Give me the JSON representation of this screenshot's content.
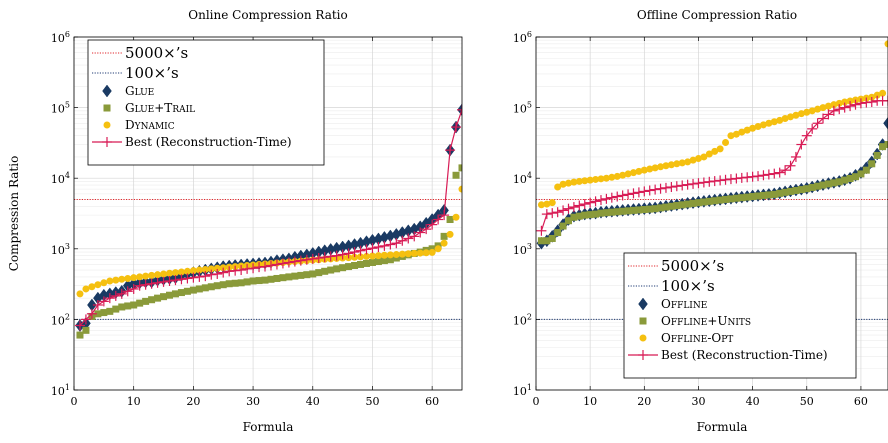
{
  "chart_data": [
    {
      "type": "scatter",
      "title": "Online Compression Ratio",
      "xlabel": "Formula",
      "ylabel": "Compression Ratio",
      "xlim": [
        0,
        65
      ],
      "ylim": [
        10,
        1000000
      ],
      "y_scale": "log",
      "x_ticks": [
        0,
        10,
        20,
        30,
        40,
        50,
        60
      ],
      "y_ticks": [
        {
          "base": "10",
          "exp": "1"
        },
        {
          "base": "10",
          "exp": "2"
        },
        {
          "base": "10",
          "exp": "3"
        },
        {
          "base": "10",
          "exp": "4"
        },
        {
          "base": "10",
          "exp": "5"
        },
        {
          "base": "10",
          "exp": "6"
        }
      ],
      "grid": true,
      "legend_position": "top-left",
      "hlines": [
        {
          "label": "5000×’s",
          "value": 5000,
          "color": "#e0262b",
          "style": "dotted"
        },
        {
          "label": "100×’s",
          "value": 100,
          "color": "#1f3b73",
          "style": "dotted"
        }
      ],
      "series": [
        {
          "name": "Glue",
          "marker": "diamond",
          "color": "#1a3a63",
          "line": false,
          "values": [
            82,
            88,
            160,
            200,
            220,
            230,
            240,
            250,
            300,
            320,
            330,
            340,
            340,
            360,
            370,
            380,
            390,
            420,
            440,
            460,
            480,
            500,
            520,
            540,
            560,
            570,
            580,
            590,
            600,
            610,
            620,
            630,
            650,
            680,
            700,
            720,
            760,
            790,
            820,
            860,
            900,
            940,
            980,
            1020,
            1060,
            1100,
            1150,
            1200,
            1260,
            1320,
            1380,
            1450,
            1520,
            1600,
            1700,
            1800,
            1900,
            2050,
            2300,
            2600,
            3000,
            3500,
            25000,
            53000,
            93000
          ]
        },
        {
          "name": "Glue+Trail",
          "marker": "square",
          "color": "#8a9a3a",
          "line": false,
          "values": [
            60,
            70,
            110,
            120,
            125,
            130,
            140,
            150,
            155,
            160,
            170,
            180,
            190,
            200,
            210,
            220,
            230,
            240,
            250,
            260,
            270,
            280,
            290,
            300,
            310,
            320,
            325,
            330,
            340,
            350,
            355,
            360,
            370,
            380,
            390,
            400,
            410,
            420,
            430,
            440,
            460,
            480,
            500,
            520,
            540,
            560,
            580,
            600,
            620,
            640,
            660,
            680,
            700,
            740,
            780,
            820,
            860,
            900,
            950,
            1000,
            1100,
            1500,
            2600,
            11000,
            14000
          ]
        },
        {
          "name": "Dynamic",
          "marker": "circle",
          "color": "#f5c010",
          "line": false,
          "values": [
            230,
            270,
            290,
            310,
            330,
            350,
            360,
            370,
            380,
            390,
            400,
            410,
            420,
            430,
            440,
            450,
            460,
            470,
            480,
            490,
            500,
            510,
            520,
            530,
            540,
            550,
            560,
            570,
            580,
            590,
            600,
            610,
            620,
            630,
            640,
            650,
            660,
            670,
            680,
            690,
            700,
            710,
            720,
            730,
            740,
            750,
            760,
            770,
            780,
            790,
            800,
            810,
            820,
            830,
            840,
            850,
            860,
            870,
            880,
            890,
            1000,
            1200,
            1600,
            2800,
            7000
          ]
        },
        {
          "name": "Best (Reconstruction-Time)",
          "marker": "plus",
          "color": "#d81b55",
          "line": true,
          "values": [
            82,
            100,
            120,
            160,
            180,
            200,
            215,
            230,
            250,
            270,
            300,
            310,
            320,
            330,
            340,
            350,
            360,
            370,
            380,
            390,
            400,
            410,
            430,
            440,
            460,
            480,
            490,
            500,
            520,
            530,
            550,
            560,
            580,
            600,
            620,
            640,
            660,
            680,
            700,
            720,
            740,
            760,
            780,
            800,
            830,
            860,
            900,
            940,
            980,
            1020,
            1060,
            1100,
            1150,
            1200,
            1300,
            1400,
            1500,
            1700,
            1900,
            2200,
            2600,
            3000,
            25000,
            53000,
            93000
          ]
        }
      ]
    },
    {
      "type": "scatter",
      "title": "Offline Compression Ratio",
      "xlabel": "Formula",
      "ylabel": "",
      "xlim": [
        0,
        65
      ],
      "ylim": [
        10,
        1000000
      ],
      "y_scale": "log",
      "x_ticks": [
        0,
        10,
        20,
        30,
        40,
        50,
        60
      ],
      "y_ticks": [
        {
          "base": "10",
          "exp": "1"
        },
        {
          "base": "10",
          "exp": "2"
        },
        {
          "base": "10",
          "exp": "3"
        },
        {
          "base": "10",
          "exp": "4"
        },
        {
          "base": "10",
          "exp": "5"
        },
        {
          "base": "10",
          "exp": "6"
        }
      ],
      "grid": true,
      "legend_position": "bottom-right",
      "hlines": [
        {
          "label": "5000×’s",
          "value": 5000,
          "color": "#e0262b",
          "style": "dotted"
        },
        {
          "label": "100×’s",
          "value": 100,
          "color": "#1f3b73",
          "style": "dotted"
        }
      ],
      "series": [
        {
          "name": "Offline",
          "marker": "diamond",
          "color": "#1a3a63",
          "line": false,
          "values": [
            1200,
            1300,
            1500,
            1800,
            2200,
            2600,
            2900,
            3000,
            3100,
            3150,
            3200,
            3300,
            3350,
            3400,
            3450,
            3500,
            3550,
            3600,
            3650,
            3700,
            3750,
            3800,
            3900,
            4000,
            4100,
            4200,
            4300,
            4400,
            4500,
            4600,
            4700,
            4800,
            4900,
            5000,
            5100,
            5200,
            5300,
            5400,
            5500,
            5600,
            5700,
            5800,
            5900,
            6000,
            6200,
            6400,
            6600,
            6800,
            7000,
            7200,
            7500,
            7800,
            8100,
            8400,
            8700,
            9000,
            9500,
            10000,
            11000,
            12000,
            14000,
            17000,
            22000,
            30000,
            60000
          ]
        },
        {
          "name": "Offline+Units",
          "marker": "square",
          "color": "#8a9a3a",
          "line": false,
          "values": [
            1300,
            1300,
            1400,
            1700,
            2100,
            2500,
            2800,
            2900,
            3000,
            3050,
            3100,
            3200,
            3250,
            3300,
            3350,
            3400,
            3450,
            3500,
            3550,
            3600,
            3650,
            3700,
            3800,
            3900,
            4000,
            4100,
            4200,
            4300,
            4400,
            4500,
            4600,
            4700,
            4800,
            4900,
            5000,
            5100,
            5200,
            5300,
            5400,
            5500,
            5600,
            5700,
            5800,
            5900,
            6100,
            6300,
            6500,
            6700,
            6900,
            7100,
            7400,
            7700,
            8000,
            8300,
            8600,
            8900,
            9400,
            9900,
            10500,
            11500,
            13000,
            16000,
            21000,
            28000,
            30000
          ]
        },
        {
          "name": "Offline-Opt",
          "marker": "circle",
          "color": "#f5c010",
          "line": false,
          "values": [
            4200,
            4300,
            4500,
            7500,
            8200,
            8500,
            8800,
            9000,
            9200,
            9400,
            9600,
            9800,
            10000,
            10300,
            10600,
            11000,
            11500,
            12000,
            12500,
            13000,
            13500,
            14000,
            14500,
            15000,
            15500,
            16000,
            16500,
            17000,
            18000,
            19000,
            20000,
            22000,
            24000,
            26000,
            32000,
            40000,
            42000,
            45000,
            48000,
            51000,
            54000,
            57000,
            60000,
            63000,
            66000,
            70000,
            74000,
            78000,
            82000,
            86000,
            90000,
            95000,
            100000,
            105000,
            110000,
            115000,
            120000,
            124000,
            128000,
            132000,
            136000,
            140000,
            150000,
            160000,
            800000
          ]
        },
        {
          "name": "Best (Reconstruction-Time)",
          "marker": "plus",
          "color": "#d81b55",
          "line": true,
          "values": [
            1800,
            3100,
            3200,
            3300,
            3500,
            3700,
            3900,
            4100,
            4300,
            4500,
            4700,
            4900,
            5100,
            5300,
            5500,
            5700,
            5900,
            6100,
            6300,
            6500,
            6700,
            6900,
            7100,
            7300,
            7500,
            7700,
            7900,
            8100,
            8300,
            8500,
            8700,
            8900,
            9100,
            9300,
            9500,
            9700,
            9900,
            10100,
            10300,
            10500,
            10700,
            11000,
            11300,
            11600,
            12000,
            13000,
            15000,
            20000,
            30000,
            40000,
            50000,
            60000,
            70000,
            80000,
            90000,
            95000,
            100000,
            105000,
            110000,
            115000,
            118000,
            120000,
            125000,
            125000,
            125000
          ]
        }
      ]
    }
  ]
}
